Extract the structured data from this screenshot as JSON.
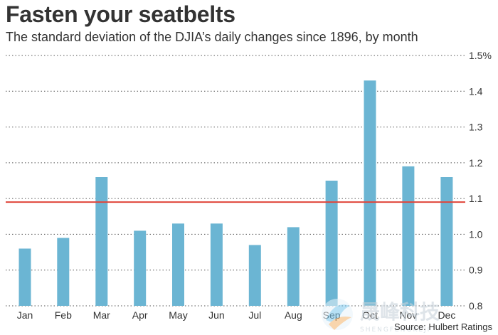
{
  "title": "Fasten your seatbelts",
  "subtitle": "The standard deviation of the DJIA’s daily changes since 1896, by month",
  "source": "Source: Hulbert Ratings",
  "watermark": {
    "text": "晟峰科技",
    "subtext": "SHENGFENGKEJI"
  },
  "colors": {
    "bar": "#6bb5d3",
    "reference_line": "#e0453a",
    "grid": "#555555",
    "text": "#333333"
  },
  "chart_data": {
    "type": "bar",
    "categories": [
      "Jan",
      "Feb",
      "Mar",
      "Apr",
      "May",
      "Jun",
      "Jul",
      "Aug",
      "Sep",
      "Oct",
      "Nov",
      "Dec"
    ],
    "values": [
      0.96,
      0.99,
      1.16,
      1.01,
      1.03,
      1.03,
      0.97,
      1.02,
      1.15,
      1.43,
      1.19,
      1.16
    ],
    "reference_line": 1.09,
    "ylim": [
      0.8,
      1.5
    ],
    "yticks": [
      0.8,
      0.9,
      1.0,
      1.1,
      1.2,
      1.3,
      1.4,
      1.5
    ],
    "ytick_labels": [
      "0.8",
      "0.9",
      "1.0",
      "1.1",
      "1.2",
      "1.3",
      "1.4",
      "1.5%"
    ],
    "grid": true,
    "ylabel": "",
    "xlabel": ""
  }
}
